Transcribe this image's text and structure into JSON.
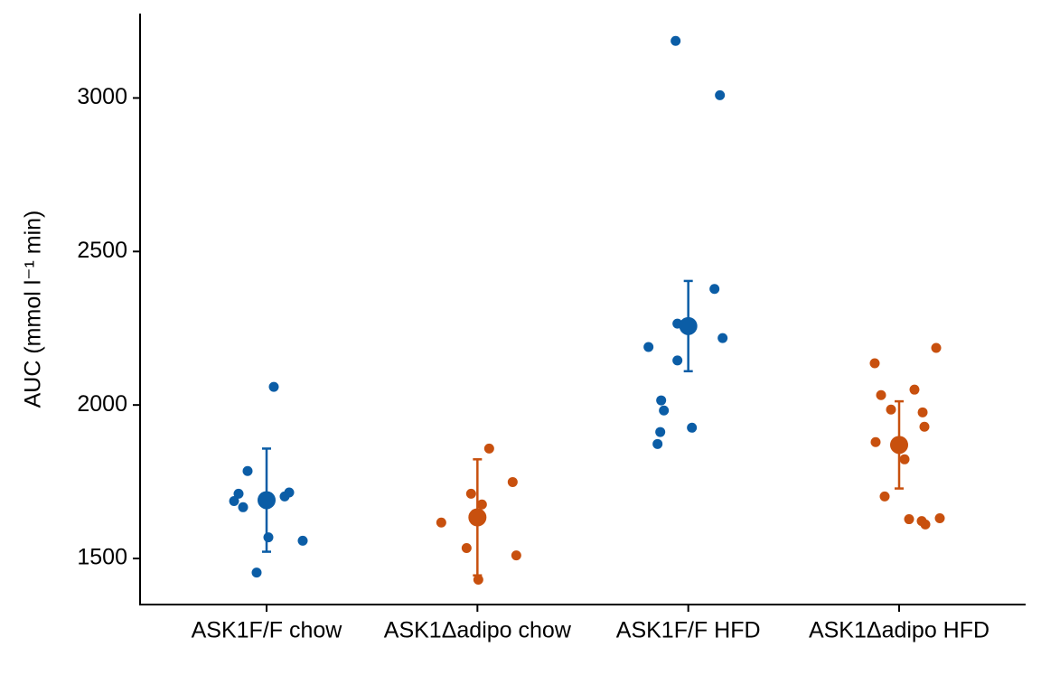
{
  "chart_data": {
    "type": "strip",
    "y_label": "AUC (mmol l⁻¹ min)",
    "categories": [
      "ASK1F/F chow",
      "ASK1Δadipo chow",
      "ASK1F/F HFD",
      "ASK1Δadipo HFD"
    ],
    "series": [
      {
        "color": "#0b5da6",
        "values": [
          2059,
          1785,
          1715,
          1711,
          1687,
          1667,
          1702,
          1569,
          1558,
          1454
        ],
        "mean": 1690,
        "error": 168
      },
      {
        "color": "#c8500e",
        "values": [
          1858,
          1749,
          1711,
          1676,
          1617,
          1534,
          1510,
          1431
        ],
        "mean": 1634,
        "error": 189
      },
      {
        "color": "#0b5da6",
        "values": [
          3186,
          3009,
          2378,
          2265,
          2218,
          2189,
          2145,
          2015,
          1982,
          1926,
          1912,
          1873
        ],
        "mean": 2257,
        "error": 147
      },
      {
        "color": "#c8500e",
        "values": [
          2186,
          2136,
          2050,
          2032,
          1985,
          1976,
          1929,
          1879,
          1823,
          1702,
          1631,
          1628,
          1622,
          1611
        ],
        "mean": 1870,
        "error": 142
      }
    ],
    "ylim": [
      1350,
      3275
    ],
    "yticks": [
      1500,
      2000,
      2500,
      3000
    ]
  }
}
